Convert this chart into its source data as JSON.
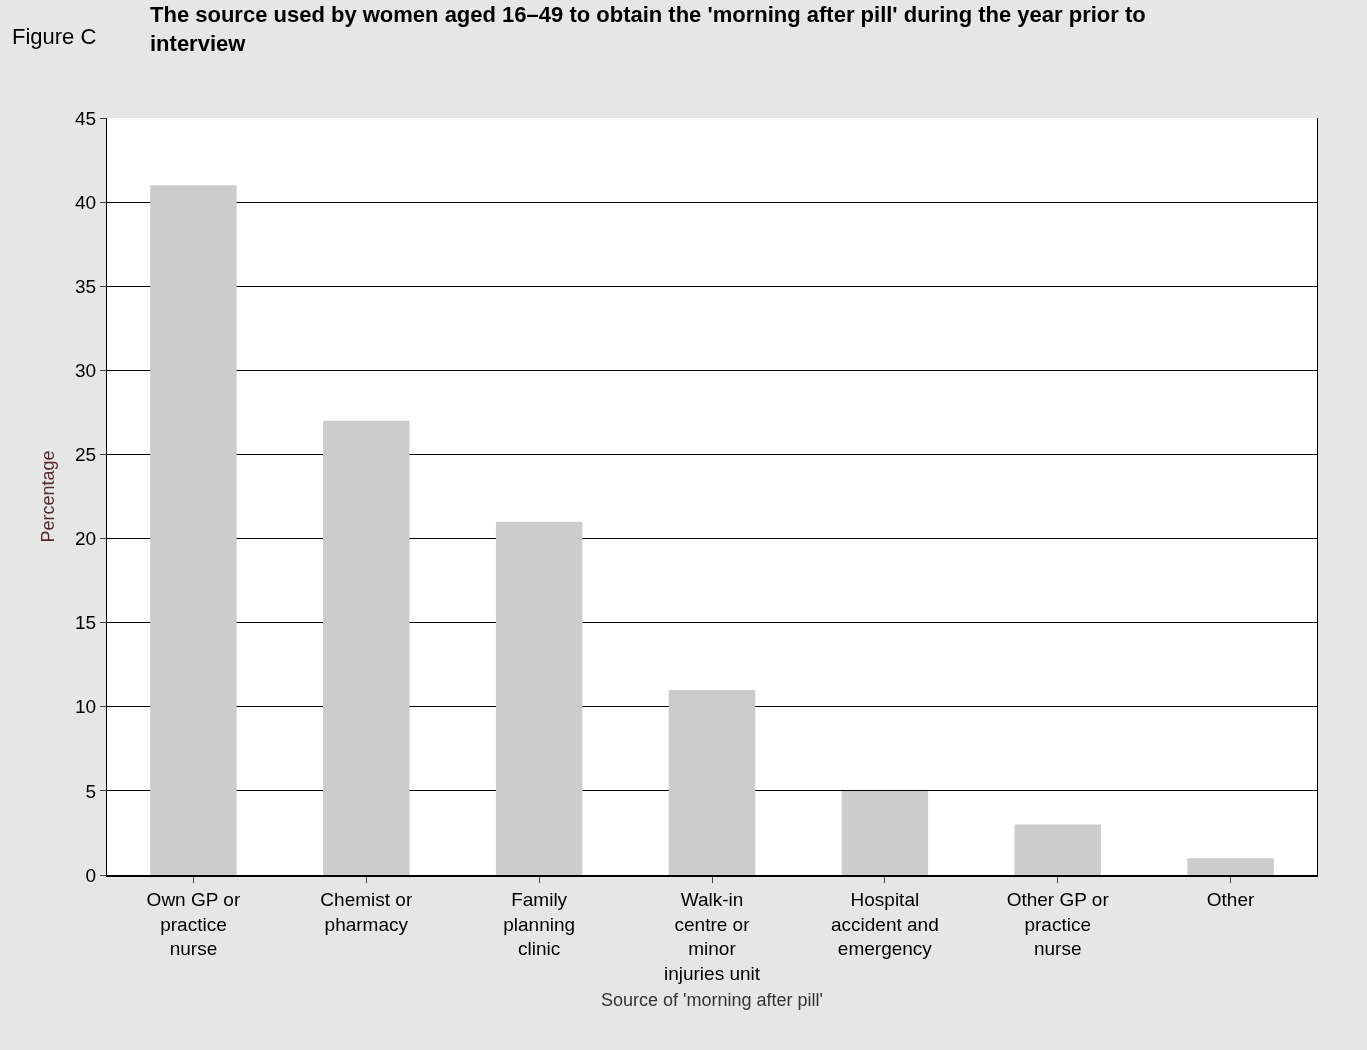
{
  "chart_data": {
    "type": "bar",
    "title": "The source used by women aged 16–49 to obtain the 'morning after pill' during the year prior to interview",
    "annotations": [
      "Figure C"
    ],
    "xlabel": "Source of 'morning after pill'",
    "ylabel": "Percentage",
    "categories": [
      "Own GP or practice nurse",
      "Chemist or pharmacy",
      "Family planning clinic",
      "Walk-in centre or minor injuries unit",
      "Hospital accident and emergency",
      "Other GP or practice nurse",
      "Other"
    ],
    "values": [
      41,
      27,
      21,
      11,
      5,
      3,
      1
    ],
    "color": "#cccccc",
    "ylim": [
      0,
      45
    ],
    "yticks": [
      0,
      5,
      10,
      15,
      20,
      25,
      30,
      35,
      40,
      45
    ],
    "grid": "y"
  }
}
